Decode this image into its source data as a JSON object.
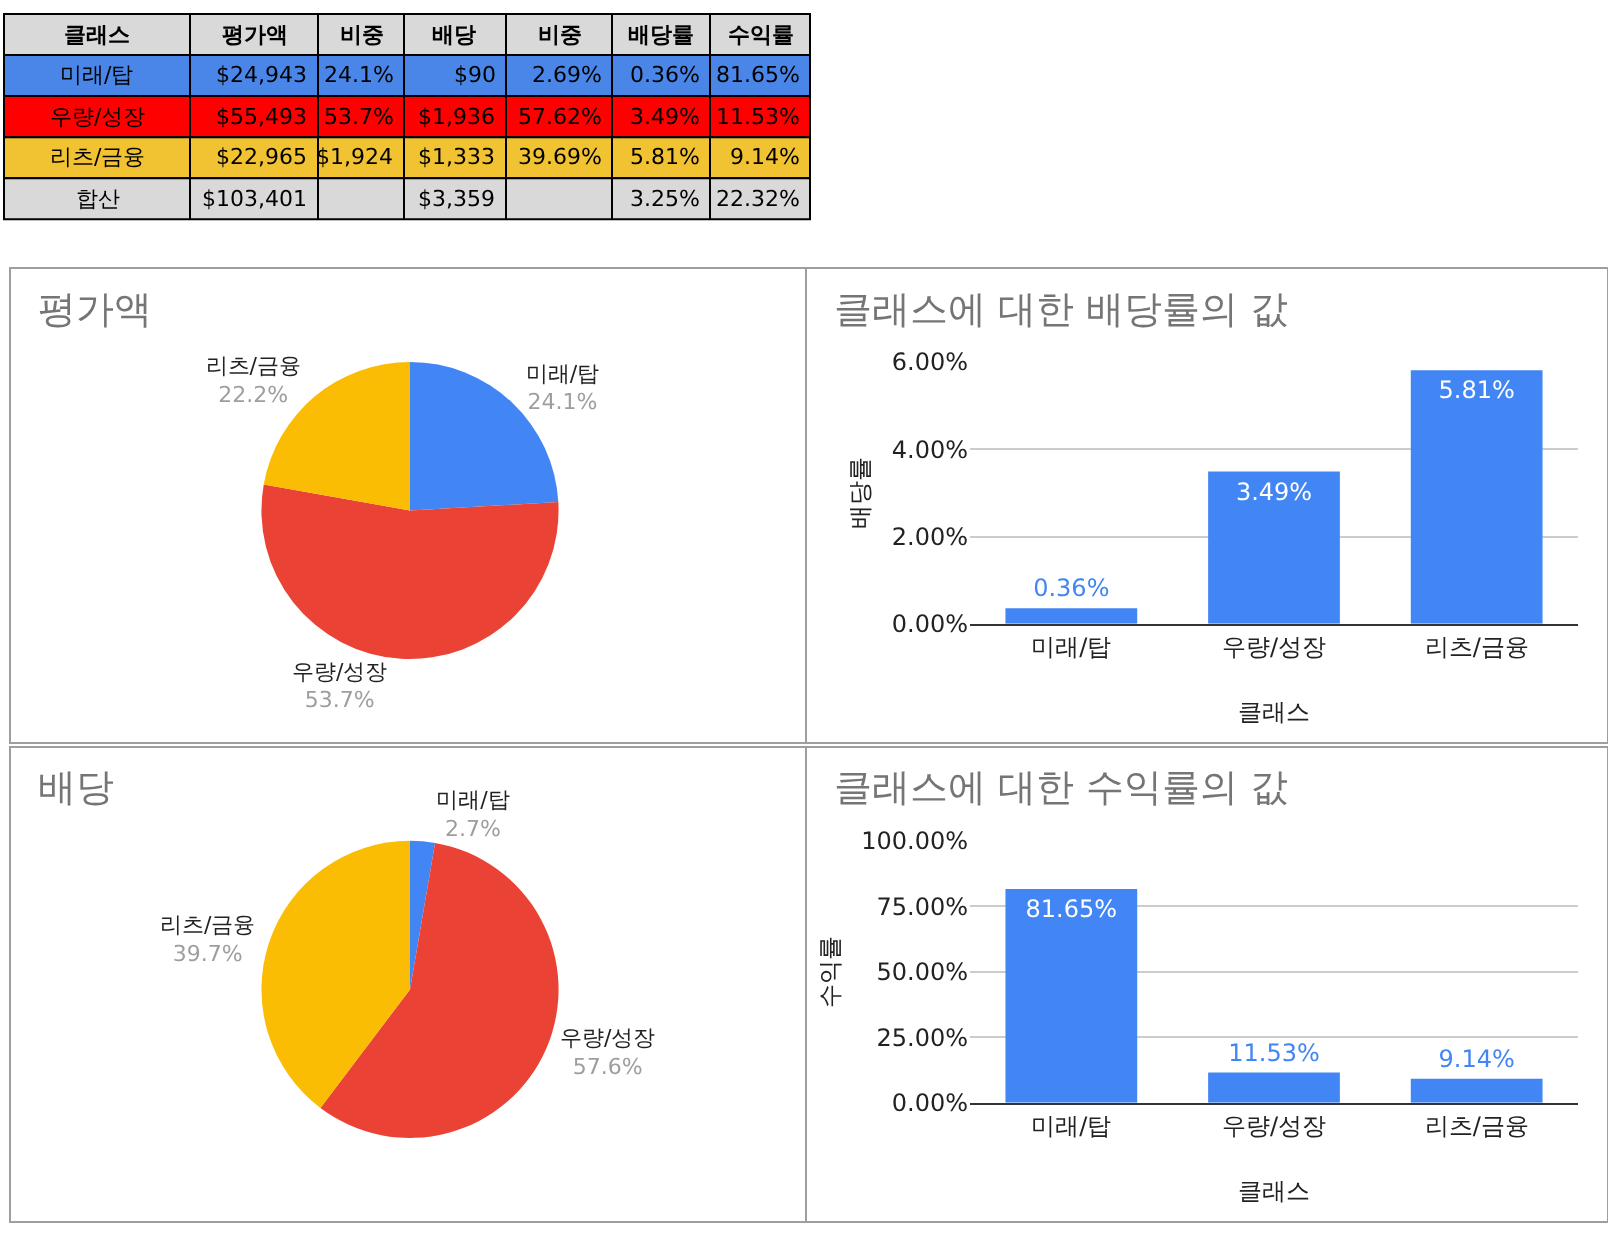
{
  "chart_data": [
    {
      "type": "other",
      "annotations": [
        "클래스",
        "평가액",
        "비중",
        "배당",
        "비중",
        "배당률",
        "수익률",
        "미래/탑",
        "$24,943",
        "24.1%",
        "$90",
        "2.69%",
        "0.36%",
        "81.65%",
        "우량/성장",
        "$55,493",
        "53.7%",
        "$1,936",
        "57.62%",
        "3.49%",
        "11.53%",
        "리츠/금융",
        "$22,965",
        "$1,924",
        "$1,333",
        "39.69%",
        "5.81%",
        "9.14%",
        "합산",
        "$103,401",
        null,
        "$3,359",
        null,
        "3.25%",
        "22.32%"
      ],
      "colors": [
        "#d9d9d9",
        "#4a86e8",
        "#ff0000",
        "#f1c232",
        "#d9d9d9"
      ]
    },
    {
      "type": "pie",
      "title": "평가액",
      "categories": [
        "미래/탑",
        "우량/성장",
        "리츠/금융"
      ],
      "values": [
        24.1,
        53.7,
        22.2
      ],
      "colors": [
        "#4285f4",
        "#ea4335",
        "#fbbc04"
      ],
      "value_labels": [
        "24.1%",
        "53.7%",
        "22.2%"
      ]
    },
    {
      "type": "bar",
      "title": "클래스에 대한 배당률의 값",
      "xlabel": "클래스",
      "ylabel": "배당률",
      "categories": [
        "미래/탑",
        "우량/성장",
        "리츠/금융"
      ],
      "values": [
        0.36,
        3.49,
        5.81
      ],
      "color": "#4285f4",
      "ylim": [
        0,
        6
      ],
      "yticks": [
        {
          "value": 0,
          "label": "0.00%"
        },
        {
          "value": 2,
          "label": "2.00%"
        },
        {
          "value": 4,
          "label": "4.00%"
        },
        {
          "value": 6,
          "label": "6.00%"
        }
      ],
      "grid": "y",
      "value_labels": [
        "0.36%",
        "3.49%",
        "5.81%"
      ]
    },
    {
      "type": "pie",
      "title": "배당",
      "categories": [
        "미래/탑",
        "우량/성장",
        "리츠/금융"
      ],
      "values": [
        2.7,
        57.6,
        39.7
      ],
      "colors": [
        "#4285f4",
        "#ea4335",
        "#fbbc04"
      ],
      "value_labels": [
        "2.7%",
        "57.6%",
        "39.7%"
      ]
    },
    {
      "type": "bar",
      "title": "클래스에 대한 수익률의 값",
      "xlabel": "클래스",
      "ylabel": "수익률",
      "categories": [
        "미래/탑",
        "우량/성장",
        "리츠/금융"
      ],
      "values": [
        81.65,
        11.53,
        9.14
      ],
      "color": "#4285f4",
      "ylim": [
        0,
        100
      ],
      "yticks": [
        {
          "value": 0,
          "label": "0.00%"
        },
        {
          "value": 25,
          "label": "25.00%"
        },
        {
          "value": 50,
          "label": "50.00%"
        },
        {
          "value": 75,
          "label": "75.00%"
        },
        {
          "value": 100,
          "label": "100.00%"
        }
      ],
      "grid": "y",
      "value_labels": [
        "81.65%",
        "11.53%",
        "9.14%"
      ]
    }
  ]
}
